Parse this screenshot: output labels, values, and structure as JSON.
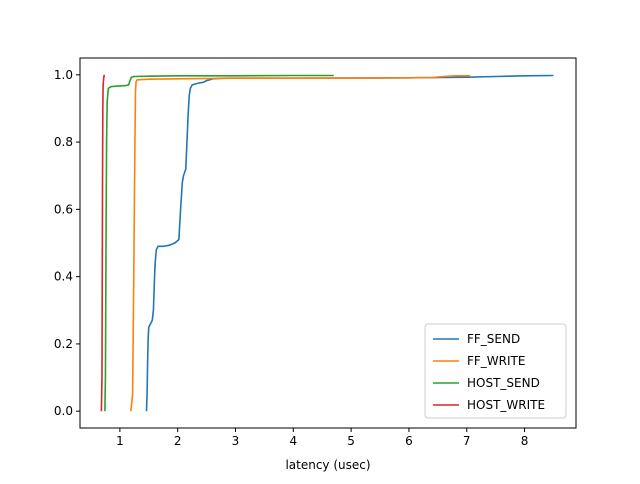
{
  "chart_data": {
    "type": "line",
    "title": "",
    "xlabel": "latency (usec)",
    "ylabel": "",
    "xlim": [
      0.31,
      8.89
    ],
    "ylim": [
      -0.05,
      1.05
    ],
    "xticks": [
      1,
      2,
      3,
      4,
      5,
      6,
      7,
      8
    ],
    "xtick_labels": [
      "1",
      "2",
      "3",
      "4",
      "5",
      "6",
      "7",
      "8"
    ],
    "yticks": [
      0.0,
      0.2,
      0.4,
      0.6,
      0.8,
      1.0
    ],
    "ytick_labels": [
      "0.0",
      "0.2",
      "0.4",
      "0.6",
      "0.8",
      "1.0"
    ],
    "grid": false,
    "legend_position": "lower-right",
    "series": [
      {
        "name": "FF_SEND",
        "color": "#1f77b4",
        "points": [
          [
            1.46,
            0.0
          ],
          [
            1.47,
            0.05
          ],
          [
            1.48,
            0.15
          ],
          [
            1.49,
            0.22
          ],
          [
            1.5,
            0.25
          ],
          [
            1.53,
            0.26
          ],
          [
            1.56,
            0.27
          ],
          [
            1.58,
            0.3
          ],
          [
            1.6,
            0.4
          ],
          [
            1.61,
            0.44
          ],
          [
            1.63,
            0.48
          ],
          [
            1.66,
            0.49
          ],
          [
            1.75,
            0.49
          ],
          [
            1.85,
            0.493
          ],
          [
            1.95,
            0.5
          ],
          [
            2.02,
            0.51
          ],
          [
            2.05,
            0.6
          ],
          [
            2.08,
            0.68
          ],
          [
            2.1,
            0.7
          ],
          [
            2.14,
            0.72
          ],
          [
            2.16,
            0.8
          ],
          [
            2.18,
            0.88
          ],
          [
            2.2,
            0.94
          ],
          [
            2.22,
            0.96
          ],
          [
            2.25,
            0.97
          ],
          [
            2.35,
            0.975
          ],
          [
            2.45,
            0.978
          ],
          [
            2.5,
            0.983
          ],
          [
            2.55,
            0.985
          ],
          [
            2.6,
            0.988
          ],
          [
            2.8,
            0.99
          ],
          [
            4.0,
            0.99
          ],
          [
            6.0,
            0.991
          ],
          [
            6.6,
            0.992
          ],
          [
            7.0,
            0.993
          ],
          [
            7.5,
            0.995
          ],
          [
            8.0,
            0.997
          ],
          [
            8.5,
            0.998
          ]
        ]
      },
      {
        "name": "FF_WRITE",
        "color": "#ff7f0e",
        "points": [
          [
            1.19,
            0.0
          ],
          [
            1.22,
            0.05
          ],
          [
            1.24,
            0.4
          ],
          [
            1.26,
            0.8
          ],
          [
            1.27,
            0.95
          ],
          [
            1.28,
            0.98
          ],
          [
            1.3,
            0.985
          ],
          [
            1.5,
            0.987
          ],
          [
            2.0,
            0.988
          ],
          [
            3.0,
            0.99
          ],
          [
            4.0,
            0.99
          ],
          [
            5.0,
            0.99
          ],
          [
            6.0,
            0.991
          ],
          [
            6.4,
            0.992
          ],
          [
            6.6,
            0.995
          ],
          [
            6.8,
            0.997
          ],
          [
            7.06,
            0.997
          ]
        ]
      },
      {
        "name": "HOST_SEND",
        "color": "#2ca02c",
        "points": [
          [
            0.74,
            0.0
          ],
          [
            0.75,
            0.1
          ],
          [
            0.76,
            0.5
          ],
          [
            0.77,
            0.8
          ],
          [
            0.78,
            0.92
          ],
          [
            0.8,
            0.96
          ],
          [
            0.85,
            0.965
          ],
          [
            1.0,
            0.967
          ],
          [
            1.1,
            0.968
          ],
          [
            1.15,
            0.97
          ],
          [
            1.18,
            0.985
          ],
          [
            1.2,
            0.993
          ],
          [
            1.25,
            0.995
          ],
          [
            1.5,
            0.996
          ],
          [
            2.0,
            0.997
          ],
          [
            3.0,
            0.997
          ],
          [
            4.0,
            0.998
          ],
          [
            4.7,
            0.998
          ]
        ]
      },
      {
        "name": "HOST_WRITE",
        "color": "#d62728",
        "points": [
          [
            0.68,
            0.0
          ],
          [
            0.69,
            0.1
          ],
          [
            0.695,
            0.4
          ],
          [
            0.7,
            0.7
          ],
          [
            0.705,
            0.9
          ],
          [
            0.71,
            0.97
          ],
          [
            0.72,
            0.99
          ],
          [
            0.73,
            1.0
          ]
        ]
      }
    ]
  }
}
